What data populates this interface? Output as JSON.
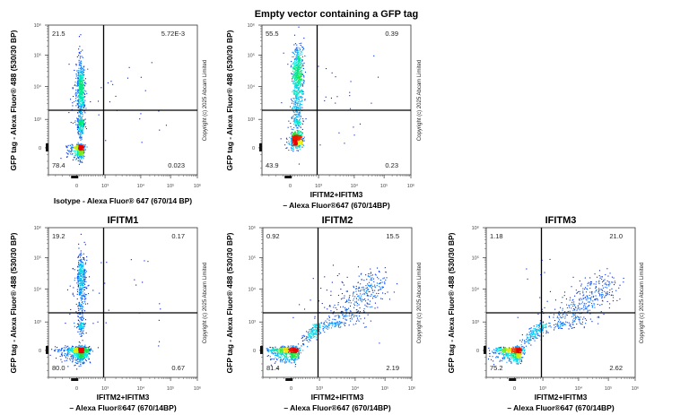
{
  "figure_title": "Empty vector containing a GFP tag",
  "y_axis_label": "GFP tag - Alexa Fluor® 488 (530/30 BP)",
  "copyright": "Copyright (c) 2025 Abcam Limited",
  "colors": {
    "density_low": "#0000c8",
    "density_mid": "#00ff80",
    "density_high": "#ff0000",
    "gate_line": "#000000"
  },
  "chart_data": [
    {
      "type": "scatter",
      "subtype": "flow-cytometry-density-dot-plot",
      "title": "",
      "xlabel_lines": [
        "Isotype - Alexa Fluor® 647 (670/14 BP)"
      ],
      "ylabel": "GFP tag - Alexa Fluor® 488 (530/30 BP)",
      "x_scale": "biexponential",
      "y_scale": "biexponential",
      "x_ticks": [
        "0",
        "10³",
        "10⁴",
        "10⁵",
        "10⁶"
      ],
      "y_ticks": [
        "0",
        "10³",
        "10⁴",
        "10⁵",
        "10⁶"
      ],
      "gate": {
        "x": 950,
        "y": 1900
      },
      "quadrants": {
        "upper_left": "21.5",
        "upper_right": "5.72E-3",
        "lower_left": "78.4",
        "lower_right": "0.023"
      },
      "populations": [
        {
          "kind": "cluster",
          "x": 80,
          "y": 0,
          "spread_x": 0.25,
          "spread_y": 0.2,
          "weight": 0.42
        },
        {
          "kind": "cluster",
          "x": 120,
          "y": 1500,
          "spread_x": 0.22,
          "spread_y": 0.9,
          "weight": 0.33
        },
        {
          "kind": "cluster",
          "x": 120,
          "y": 10000,
          "spread_x": 0.22,
          "spread_y": 0.35,
          "weight": 0.25
        }
      ]
    },
    {
      "type": "scatter",
      "subtype": "flow-cytometry-density-dot-plot",
      "title": "",
      "xlabel_lines": [
        "IFITM2+IFITM3",
        "– Alexa Fluor®647 (670/14BP)"
      ],
      "ylabel": "GFP tag - Alexa Fluor® 488 (530/30 BP)",
      "x_scale": "biexponential",
      "y_scale": "biexponential",
      "x_ticks": [
        "0",
        "10³",
        "10⁴",
        "10⁵",
        "10⁶"
      ],
      "y_ticks": [
        "0",
        "10³",
        "10⁴",
        "10⁵",
        "10⁶"
      ],
      "gate": {
        "x": 950,
        "y": 1900
      },
      "quadrants": {
        "upper_left": "55.5",
        "upper_right": "0.39",
        "lower_left": "43.9",
        "lower_right": "0.23"
      },
      "populations": [
        {
          "kind": "cluster",
          "x": 200,
          "y": 300,
          "spread_x": 0.3,
          "spread_y": 0.45,
          "weight": 0.42
        },
        {
          "kind": "cluster",
          "x": 220,
          "y": 2500,
          "spread_x": 0.3,
          "spread_y": 0.6,
          "weight": 0.2
        },
        {
          "kind": "cluster",
          "x": 250,
          "y": 25000,
          "spread_x": 0.3,
          "spread_y": 0.45,
          "weight": 0.38
        }
      ]
    },
    {
      "type": "scatter",
      "subtype": "flow-cytometry-density-dot-plot",
      "title": "IFITM1",
      "xlabel_lines": [
        "IFITM2+IFITM3",
        "– Alexa Fluor®647 (670/14BP)"
      ],
      "ylabel": "GFP tag - Alexa Fluor® 488 (530/30 BP)",
      "x_scale": "biexponential",
      "y_scale": "biexponential",
      "x_ticks": [
        "0",
        "10³",
        "10⁴",
        "10⁵",
        "10⁶"
      ],
      "y_ticks": [
        "0",
        "10³",
        "10⁴",
        "10⁵",
        "10⁶"
      ],
      "gate": {
        "x": 950,
        "y": 1900
      },
      "quadrants": {
        "upper_left": "19.2",
        "upper_right": "0.17",
        "lower_left": "80.0",
        "lower_right": "0.67"
      },
      "populations": [
        {
          "kind": "cluster",
          "x": 100,
          "y": 0,
          "spread_x": 0.45,
          "spread_y": 0.2,
          "weight": 0.62
        },
        {
          "kind": "cluster",
          "x": 120,
          "y": 2000,
          "spread_x": 0.25,
          "spread_y": 0.9,
          "weight": 0.18
        },
        {
          "kind": "cluster",
          "x": 150,
          "y": 25000,
          "spread_x": 0.25,
          "spread_y": 0.4,
          "weight": 0.2
        }
      ]
    },
    {
      "type": "scatter",
      "subtype": "flow-cytometry-density-dot-plot",
      "title": "IFITM2",
      "xlabel_lines": [
        "IFITM2+IFITM3",
        "– Alexa Fluor®647 (670/14BP)"
      ],
      "ylabel": "GFP tag - Alexa Fluor® 488 (530/30 BP)",
      "x_scale": "biexponential",
      "y_scale": "biexponential",
      "x_ticks": [
        "0",
        "10³",
        "10⁴",
        "10⁵",
        "10⁶"
      ],
      "y_ticks": [
        "0",
        "10³",
        "10⁴",
        "10⁵",
        "10⁶"
      ],
      "gate": {
        "x": 950,
        "y": 1900
      },
      "quadrants": {
        "upper_left": "0.92",
        "upper_right": "15.5",
        "lower_left": "81.4",
        "lower_right": "2.19"
      },
      "populations": [
        {
          "kind": "cluster",
          "x": 0,
          "y": 0,
          "spread_x": 0.4,
          "spread_y": 0.2,
          "weight": 0.55
        },
        {
          "kind": "trajectory",
          "from": {
            "x": 300,
            "y": 200
          },
          "to": {
            "x": 60000,
            "y": 20000
          },
          "spread": 0.3,
          "weight": 0.45
        }
      ]
    },
    {
      "type": "scatter",
      "subtype": "flow-cytometry-density-dot-plot",
      "title": "IFITM3",
      "xlabel_lines": [
        "IFITM2+IFITM3",
        "– Alexa Fluor®647 (670/14BP)"
      ],
      "ylabel": "GFP tag - Alexa Fluor® 488 (530/30 BP)",
      "x_scale": "biexponential",
      "y_scale": "biexponential",
      "x_ticks": [
        "0",
        "10³",
        "10⁴",
        "10⁵",
        "10⁶"
      ],
      "y_ticks": [
        "0",
        "10³",
        "10⁴",
        "10⁵",
        "10⁶"
      ],
      "gate": {
        "x": 950,
        "y": 1900
      },
      "quadrants": {
        "upper_left": "1.18",
        "upper_right": "21.0",
        "lower_left": "75.2",
        "lower_right": "2.62"
      },
      "populations": [
        {
          "kind": "cluster",
          "x": 0,
          "y": 0,
          "spread_x": 0.4,
          "spread_y": 0.2,
          "weight": 0.55
        },
        {
          "kind": "trajectory",
          "from": {
            "x": 200,
            "y": 150
          },
          "to": {
            "x": 80000,
            "y": 15000
          },
          "spread": 0.32,
          "weight": 0.45
        }
      ]
    }
  ]
}
